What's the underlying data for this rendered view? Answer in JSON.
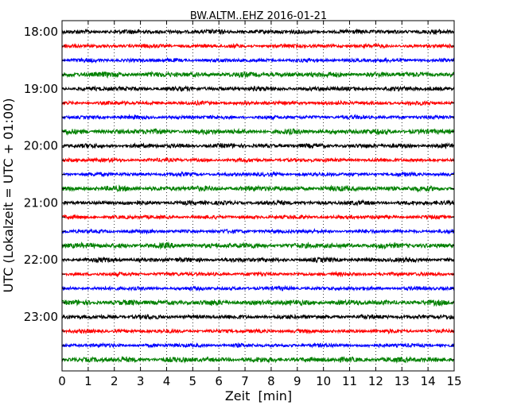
{
  "chart_data": {
    "type": "line",
    "title": "BW.ALTM..EHZ 2016-01-21",
    "xlabel": "Zeit  [min]",
    "ylabel": "UTC (Lokalzeit = UTC + 01:00)",
    "xlim": [
      0,
      15
    ],
    "x_ticks": [
      "0",
      "1",
      "2",
      "3",
      "4",
      "5",
      "6",
      "7",
      "8",
      "9",
      "10",
      "11",
      "12",
      "13",
      "14",
      "15"
    ],
    "y_ticks": [
      "18:00",
      "19:00",
      "20:00",
      "21:00",
      "22:00",
      "23:00"
    ],
    "grid": "vertical dotted",
    "trace_interval_minutes": 15,
    "color_cycle": [
      "#000000",
      "#ff0000",
      "#0000ff",
      "#008000"
    ],
    "traces": [
      {
        "start": "18:00",
        "color": "#000000"
      },
      {
        "start": "18:15",
        "color": "#ff0000"
      },
      {
        "start": "18:30",
        "color": "#0000ff"
      },
      {
        "start": "18:45",
        "color": "#008000"
      },
      {
        "start": "19:00",
        "color": "#000000"
      },
      {
        "start": "19:15",
        "color": "#ff0000"
      },
      {
        "start": "19:30",
        "color": "#0000ff"
      },
      {
        "start": "19:45",
        "color": "#008000"
      },
      {
        "start": "20:00",
        "color": "#000000"
      },
      {
        "start": "20:15",
        "color": "#ff0000"
      },
      {
        "start": "20:30",
        "color": "#0000ff"
      },
      {
        "start": "20:45",
        "color": "#008000"
      },
      {
        "start": "21:00",
        "color": "#000000"
      },
      {
        "start": "21:15",
        "color": "#ff0000"
      },
      {
        "start": "21:30",
        "color": "#0000ff"
      },
      {
        "start": "21:45",
        "color": "#008000"
      },
      {
        "start": "22:00",
        "color": "#000000"
      },
      {
        "start": "22:15",
        "color": "#ff0000"
      },
      {
        "start": "22:30",
        "color": "#0000ff"
      },
      {
        "start": "22:45",
        "color": "#008000"
      },
      {
        "start": "23:00",
        "color": "#000000"
      },
      {
        "start": "23:15",
        "color": "#ff0000"
      },
      {
        "start": "23:30",
        "color": "#0000ff"
      },
      {
        "start": "23:45",
        "color": "#008000"
      }
    ]
  }
}
